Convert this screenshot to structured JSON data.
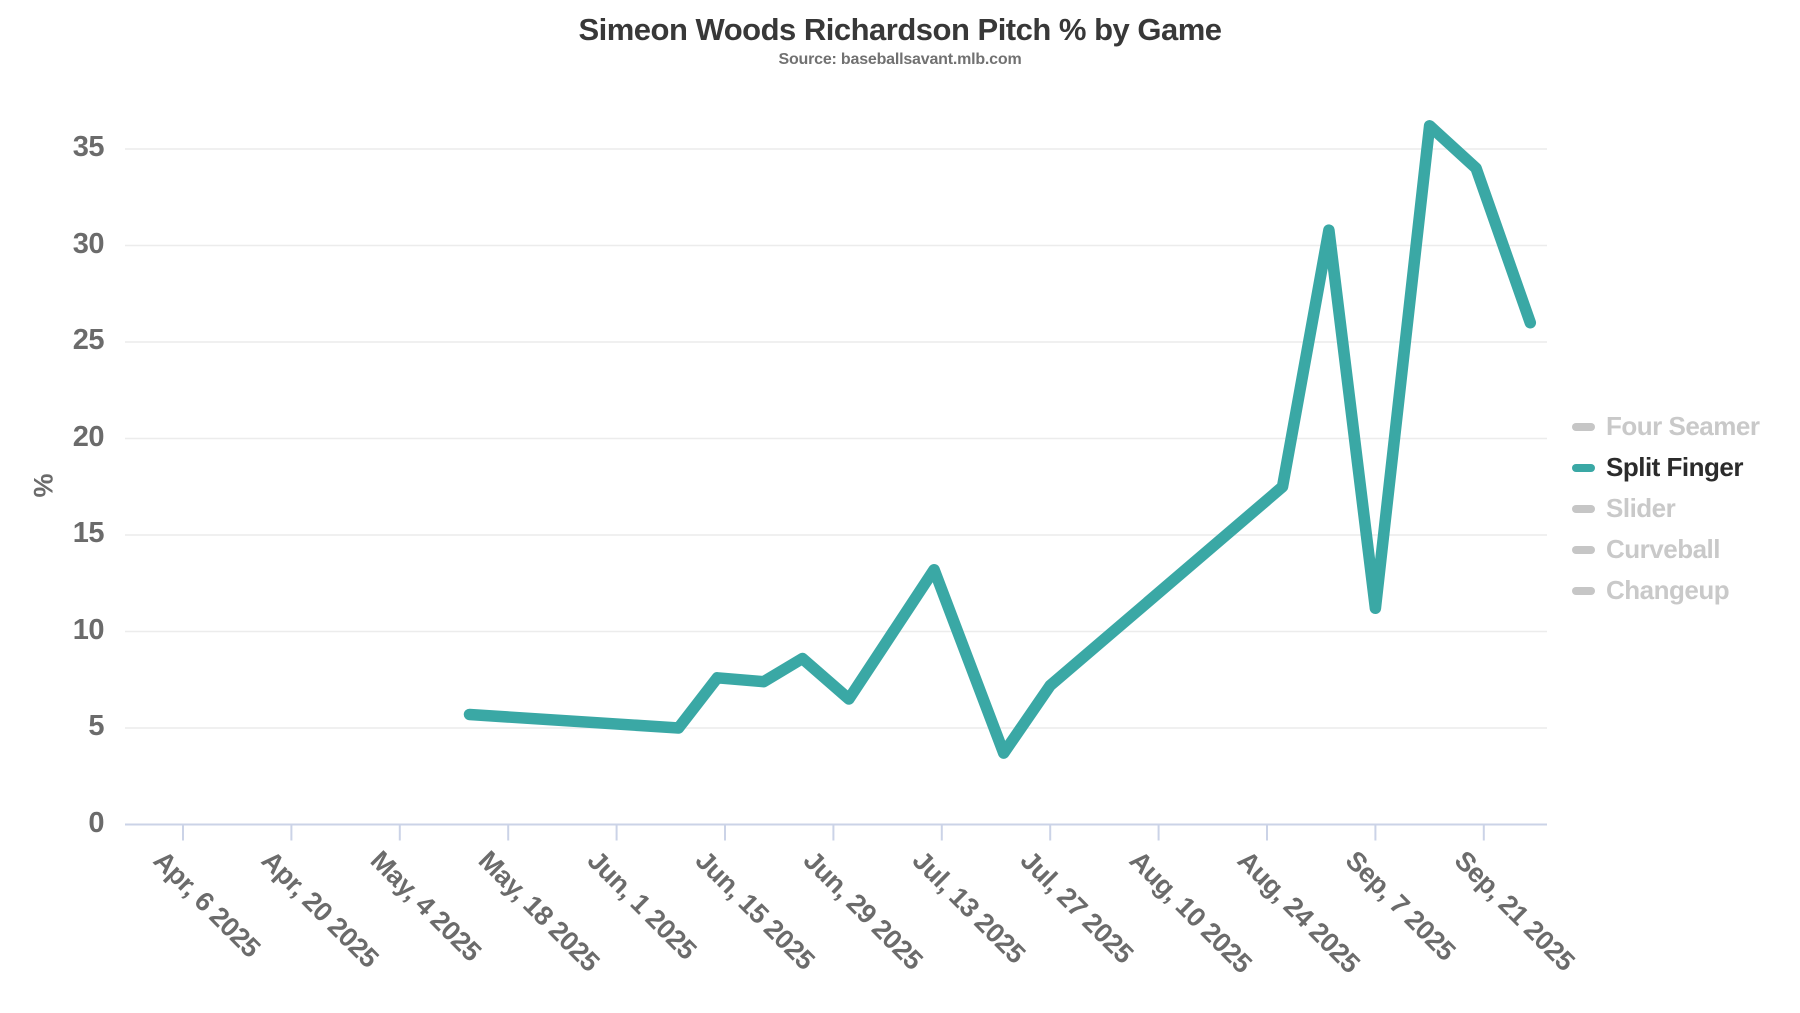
{
  "header": {
    "title": "Simeon Woods Richardson Pitch % by Game",
    "source": "Source: baseballsavant.mlb.com"
  },
  "colors": {
    "accent_teal": "#3AA8A5",
    "inactive_gray": "#C9C9C9",
    "inactive_swatch_gray": "#C6C6C6",
    "active_label": "#2B2B2B",
    "grid": "#ECECEC",
    "axis_line": "#CBD3E7",
    "tick_label_gray": "#6B6B6B"
  },
  "chart_data": {
    "type": "line",
    "title": "Simeon Woods Richardson Pitch % by Game",
    "subtitle": "Source: baseballsavant.mlb.com",
    "xlabel": "",
    "ylabel": "%",
    "ylim": [
      0,
      37
    ],
    "yticks": [
      0,
      5,
      10,
      15,
      20,
      25,
      30,
      35
    ],
    "grid": true,
    "legend_position": "right",
    "xticks": [
      {
        "label": "Apr, 6 2025",
        "date": "2025-04-06"
      },
      {
        "label": "Apr, 20 2025",
        "date": "2025-04-20"
      },
      {
        "label": "May, 4 2025",
        "date": "2025-05-04"
      },
      {
        "label": "May, 18 2025",
        "date": "2025-05-18"
      },
      {
        "label": "Jun, 1 2025",
        "date": "2025-06-01"
      },
      {
        "label": "Jun, 15 2025",
        "date": "2025-06-15"
      },
      {
        "label": "Jun, 29 2025",
        "date": "2025-06-29"
      },
      {
        "label": "Jul, 13 2025",
        "date": "2025-07-13"
      },
      {
        "label": "Jul, 27 2025",
        "date": "2025-07-27"
      },
      {
        "label": "Aug, 10 2025",
        "date": "2025-08-10"
      },
      {
        "label": "Aug, 24 2025",
        "date": "2025-08-24"
      },
      {
        "label": "Sep, 7 2025",
        "date": "2025-09-07"
      },
      {
        "label": "Sep, 21 2025",
        "date": "2025-09-21"
      }
    ],
    "series": [
      {
        "name": "Four Seamer",
        "active": false,
        "color": "#C6C6C6",
        "points": []
      },
      {
        "name": "Split Finger",
        "active": true,
        "color": "#3AA8A5",
        "points": [
          {
            "date": "2025-05-13",
            "value": 5.7
          },
          {
            "date": "2025-06-09",
            "value": 5.0
          },
          {
            "date": "2025-06-14",
            "value": 7.6
          },
          {
            "date": "2025-06-20",
            "value": 7.4
          },
          {
            "date": "2025-06-25",
            "value": 8.6
          },
          {
            "date": "2025-07-01",
            "value": 6.5
          },
          {
            "date": "2025-07-12",
            "value": 13.2
          },
          {
            "date": "2025-07-21",
            "value": 3.7
          },
          {
            "date": "2025-07-27",
            "value": 7.2
          },
          {
            "date": "2025-08-26",
            "value": 17.5
          },
          {
            "date": "2025-09-01",
            "value": 30.8
          },
          {
            "date": "2025-09-07",
            "value": 11.2
          },
          {
            "date": "2025-09-14",
            "value": 36.2
          },
          {
            "date": "2025-09-20",
            "value": 34.0
          },
          {
            "date": "2025-09-27",
            "value": 26.0
          }
        ]
      },
      {
        "name": "Slider",
        "active": false,
        "color": "#C6C6C6",
        "points": []
      },
      {
        "name": "Curveball",
        "active": false,
        "color": "#C6C6C6",
        "points": []
      },
      {
        "name": "Changeup",
        "active": false,
        "color": "#C6C6C6",
        "points": []
      }
    ]
  }
}
